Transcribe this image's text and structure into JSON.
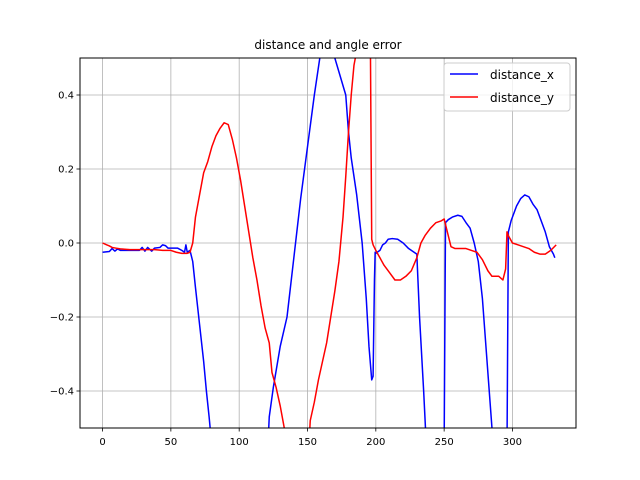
{
  "chart_data": {
    "type": "line",
    "title": "distance and angle error",
    "xlabel": "",
    "ylabel": "",
    "xlim": [
      -16.5,
      346.5
    ],
    "ylim": [
      -0.5,
      0.5
    ],
    "x_ticks": [
      0,
      50,
      100,
      150,
      200,
      250,
      300
    ],
    "y_ticks": [
      -0.4,
      -0.2,
      0.0,
      0.2,
      0.4
    ],
    "x_tick_labels": [
      "0",
      "50",
      "100",
      "150",
      "200",
      "250",
      "300"
    ],
    "y_tick_labels": [
      "−0.4",
      "−0.2",
      "0.0",
      "0.2",
      "0.4"
    ],
    "grid": true,
    "legend_position": "top-right",
    "series": [
      {
        "name": "distance_x",
        "color": "#0000ff",
        "points": [
          [
            0,
            -0.025
          ],
          [
            5,
            -0.023
          ],
          [
            7,
            -0.015
          ],
          [
            9,
            -0.022
          ],
          [
            11,
            -0.016
          ],
          [
            13,
            -0.02
          ],
          [
            20,
            -0.02
          ],
          [
            27,
            -0.02
          ],
          [
            29,
            -0.012
          ],
          [
            31,
            -0.022
          ],
          [
            33,
            -0.012
          ],
          [
            36,
            -0.022
          ],
          [
            38,
            -0.014
          ],
          [
            42,
            -0.012
          ],
          [
            44,
            -0.005
          ],
          [
            46,
            -0.007
          ],
          [
            48,
            -0.014
          ],
          [
            55,
            -0.014
          ],
          [
            58,
            -0.02
          ],
          [
            60,
            -0.025
          ],
          [
            61,
            -0.005
          ],
          [
            62,
            -0.025
          ],
          [
            64,
            -0.02
          ],
          [
            66,
            -0.05
          ],
          [
            68,
            -0.12
          ],
          [
            71,
            -0.22
          ],
          [
            74,
            -0.32
          ],
          [
            76,
            -0.4
          ],
          [
            78,
            -0.47
          ],
          [
            80,
            -0.55
          ],
          [
            121,
            -0.55
          ],
          [
            122,
            -0.47
          ],
          [
            125,
            -0.39
          ],
          [
            130,
            -0.28
          ],
          [
            135,
            -0.2
          ],
          [
            140,
            -0.04
          ],
          [
            145,
            0.12
          ],
          [
            150,
            0.26
          ],
          [
            155,
            0.4
          ],
          [
            159,
            0.5
          ],
          [
            160,
            0.55
          ],
          [
            169,
            0.55
          ],
          [
            170,
            0.5
          ],
          [
            174,
            0.45
          ],
          [
            178,
            0.4
          ],
          [
            180,
            0.3
          ],
          [
            182,
            0.23
          ],
          [
            186,
            0.13
          ],
          [
            190,
            0.0
          ],
          [
            193,
            -0.15
          ],
          [
            195,
            -0.28
          ],
          [
            197,
            -0.37
          ],
          [
            198,
            -0.36
          ],
          [
            199,
            -0.1
          ],
          [
            199.5,
            -0.025
          ],
          [
            200,
            -0.028
          ],
          [
            201,
            -0.025
          ],
          [
            203,
            -0.02
          ],
          [
            205,
            -0.005
          ],
          [
            207,
            0.0
          ],
          [
            209,
            0.01
          ],
          [
            212,
            0.012
          ],
          [
            216,
            0.01
          ],
          [
            220,
            0.0
          ],
          [
            224,
            -0.015
          ],
          [
            230,
            -0.03
          ],
          [
            232,
            -0.2
          ],
          [
            235,
            -0.4
          ],
          [
            237,
            -0.55
          ],
          [
            250,
            -0.55
          ],
          [
            251,
            0.055
          ],
          [
            253,
            0.063
          ],
          [
            256,
            0.07
          ],
          [
            260,
            0.075
          ],
          [
            263,
            0.072
          ],
          [
            266,
            0.055
          ],
          [
            269,
            0.04
          ],
          [
            272,
            0.0
          ],
          [
            275,
            -0.05
          ],
          [
            278,
            -0.15
          ],
          [
            281,
            -0.3
          ],
          [
            284,
            -0.45
          ],
          [
            286,
            -0.55
          ],
          [
            296,
            -0.55
          ],
          [
            297,
            0.03
          ],
          [
            299,
            0.06
          ],
          [
            303,
            0.1
          ],
          [
            306,
            0.12
          ],
          [
            309,
            0.13
          ],
          [
            312,
            0.125
          ],
          [
            315,
            0.105
          ],
          [
            318,
            0.09
          ],
          [
            321,
            0.06
          ],
          [
            324,
            0.03
          ],
          [
            327,
            -0.01
          ],
          [
            330,
            -0.03
          ],
          [
            331,
            -0.04
          ]
        ]
      },
      {
        "name": "distance_y",
        "color": "#ff0000",
        "points": [
          [
            0,
            0.0
          ],
          [
            3,
            -0.005
          ],
          [
            5,
            -0.008
          ],
          [
            7,
            -0.012
          ],
          [
            10,
            -0.014
          ],
          [
            13,
            -0.016
          ],
          [
            20,
            -0.018
          ],
          [
            30,
            -0.018
          ],
          [
            38,
            -0.018
          ],
          [
            44,
            -0.02
          ],
          [
            50,
            -0.02
          ],
          [
            54,
            -0.025
          ],
          [
            58,
            -0.028
          ],
          [
            62,
            -0.028
          ],
          [
            64,
            -0.025
          ],
          [
            66,
            0.0
          ],
          [
            68,
            0.07
          ],
          [
            71,
            0.13
          ],
          [
            74,
            0.19
          ],
          [
            77,
            0.22
          ],
          [
            80,
            0.26
          ],
          [
            83,
            0.29
          ],
          [
            86,
            0.31
          ],
          [
            89,
            0.325
          ],
          [
            92,
            0.32
          ],
          [
            95,
            0.28
          ],
          [
            98,
            0.23
          ],
          [
            101,
            0.17
          ],
          [
            104,
            0.1
          ],
          [
            107,
            0.03
          ],
          [
            110,
            -0.04
          ],
          [
            113,
            -0.1
          ],
          [
            116,
            -0.17
          ],
          [
            119,
            -0.23
          ],
          [
            122,
            -0.27
          ],
          [
            124,
            -0.35
          ],
          [
            127,
            -0.39
          ],
          [
            130,
            -0.44
          ],
          [
            133,
            -0.5
          ],
          [
            135,
            -0.55
          ],
          [
            151,
            -0.55
          ],
          [
            152,
            -0.48
          ],
          [
            155,
            -0.43
          ],
          [
            158,
            -0.37
          ],
          [
            161,
            -0.32
          ],
          [
            164,
            -0.27
          ],
          [
            167,
            -0.2
          ],
          [
            170,
            -0.13
          ],
          [
            173,
            -0.05
          ],
          [
            176,
            0.07
          ],
          [
            178,
            0.18
          ],
          [
            180,
            0.3
          ],
          [
            182,
            0.4
          ],
          [
            184,
            0.48
          ],
          [
            185,
            0.5
          ],
          [
            186,
            0.55
          ],
          [
            196,
            0.55
          ],
          [
            197,
            0.01
          ],
          [
            198,
            -0.005
          ],
          [
            200,
            -0.02
          ],
          [
            203,
            -0.04
          ],
          [
            206,
            -0.06
          ],
          [
            210,
            -0.08
          ],
          [
            214,
            -0.1
          ],
          [
            218,
            -0.1
          ],
          [
            222,
            -0.09
          ],
          [
            226,
            -0.075
          ],
          [
            230,
            -0.04
          ],
          [
            233,
            0.0
          ],
          [
            236,
            0.02
          ],
          [
            240,
            0.04
          ],
          [
            244,
            0.055
          ],
          [
            248,
            0.06
          ],
          [
            250,
            0.065
          ],
          [
            253,
            0.02
          ],
          [
            255,
            -0.01
          ],
          [
            258,
            -0.015
          ],
          [
            262,
            -0.015
          ],
          [
            266,
            -0.015
          ],
          [
            270,
            -0.02
          ],
          [
            274,
            -0.025
          ],
          [
            278,
            -0.045
          ],
          [
            282,
            -0.075
          ],
          [
            285,
            -0.09
          ],
          [
            287,
            -0.09
          ],
          [
            290,
            -0.09
          ],
          [
            293,
            -0.1
          ],
          [
            295,
            -0.07
          ],
          [
            296,
            0.03
          ],
          [
            297,
            0.02
          ],
          [
            300,
            0.0
          ],
          [
            304,
            -0.005
          ],
          [
            308,
            -0.01
          ],
          [
            312,
            -0.015
          ],
          [
            316,
            -0.025
          ],
          [
            320,
            -0.03
          ],
          [
            324,
            -0.03
          ],
          [
            328,
            -0.02
          ],
          [
            332,
            -0.005
          ]
        ]
      }
    ]
  }
}
